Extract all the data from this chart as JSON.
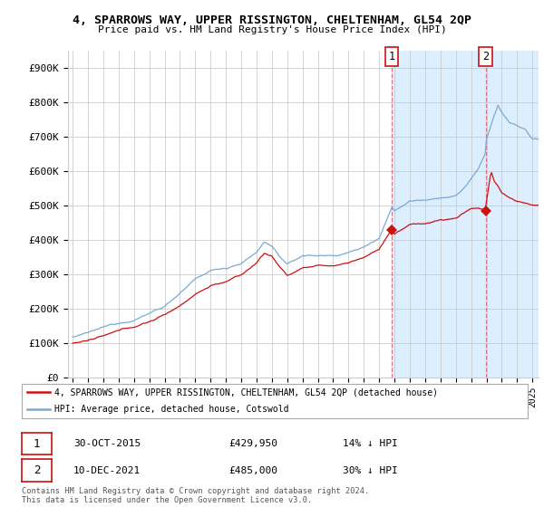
{
  "title": "4, SPARROWS WAY, UPPER RISSINGTON, CHELTENHAM, GL54 2QP",
  "subtitle": "Price paid vs. HM Land Registry's House Price Index (HPI)",
  "ylabel_ticks": [
    "£0",
    "£100K",
    "£200K",
    "£300K",
    "£400K",
    "£500K",
    "£600K",
    "£700K",
    "£800K",
    "£900K"
  ],
  "ytick_values": [
    0,
    100000,
    200000,
    300000,
    400000,
    500000,
    600000,
    700000,
    800000,
    900000
  ],
  "ylim": [
    0,
    950000
  ],
  "xlim_start": 1994.7,
  "xlim_end": 2025.4,
  "hpi_color": "#7aaad4",
  "price_color": "#cc1111",
  "shaded_color": "#ddeeff",
  "grid_color": "#cccccc",
  "legend_label_price": "4, SPARROWS WAY, UPPER RISSINGTON, CHELTENHAM, GL54 2QP (detached house)",
  "legend_label_hpi": "HPI: Average price, detached house, Cotswold",
  "purchase1_date": 2015.83,
  "purchase1_price": 429950,
  "purchase2_date": 2021.94,
  "purchase2_price": 485000,
  "copyright_text": "Contains HM Land Registry data © Crown copyright and database right 2024.\nThis data is licensed under the Open Government Licence v3.0."
}
